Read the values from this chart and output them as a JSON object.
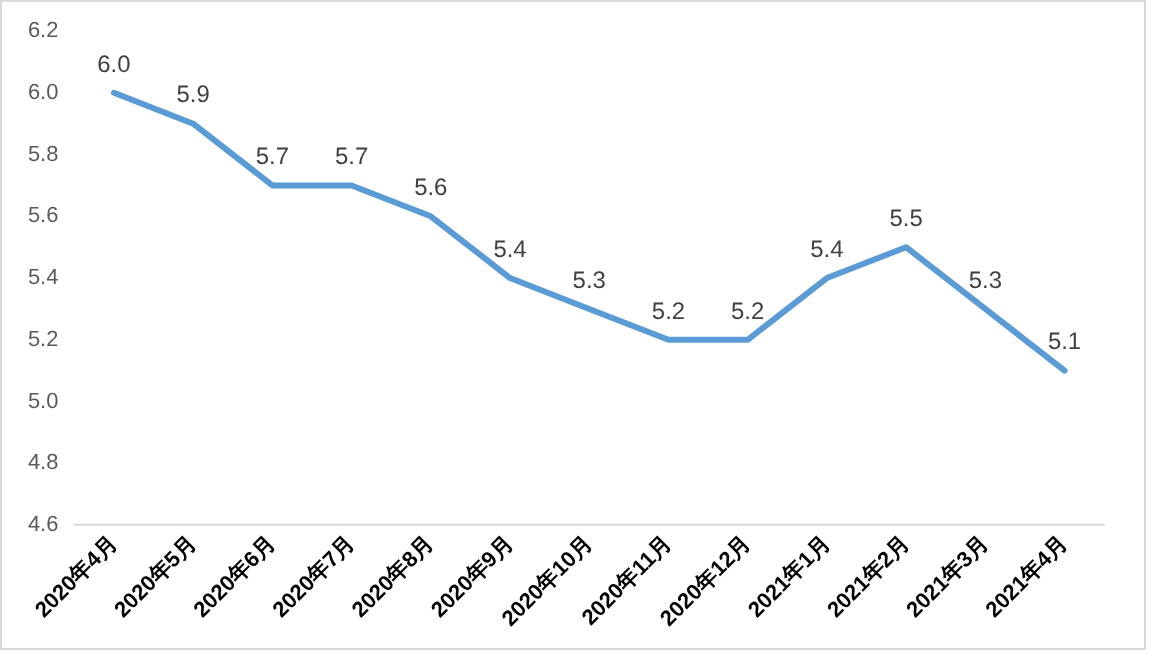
{
  "chart_data": {
    "type": "line",
    "categories": [
      "2020年4月",
      "2020年5月",
      "2020年6月",
      "2020年7月",
      "2020年8月",
      "2020年9月",
      "2020年10月",
      "2020年11月",
      "2020年12月",
      "2021年1月",
      "2021年2月",
      "2021年3月",
      "2021年4月"
    ],
    "series": [
      {
        "color": "#5b9bd5",
        "values": [
          6.0,
          5.9,
          5.7,
          5.7,
          5.6,
          5.4,
          5.3,
          5.2,
          5.2,
          5.4,
          5.5,
          5.3,
          5.1
        ],
        "value_labels": [
          "6.0",
          "5.9",
          "5.7",
          "5.7",
          "5.6",
          "5.4",
          "5.3",
          "5.2",
          "5.2",
          "5.4",
          "5.5",
          "5.3",
          "5.1"
        ]
      }
    ],
    "ylim": [
      4.6,
      6.2
    ],
    "yticks": [
      {
        "value": 4.6,
        "label": "4.6"
      },
      {
        "value": 4.8,
        "label": "4.8"
      },
      {
        "value": 5.0,
        "label": "5.0"
      },
      {
        "value": 5.2,
        "label": "5.2"
      },
      {
        "value": 5.4,
        "label": "5.4"
      },
      {
        "value": 5.6,
        "label": "5.6"
      },
      {
        "value": 5.8,
        "label": "5.8"
      },
      {
        "value": 6.0,
        "label": "6.0"
      },
      {
        "value": 6.2,
        "label": "6.2"
      }
    ],
    "grid": false,
    "legend": false,
    "marker": "none",
    "line_style": "solid"
  }
}
